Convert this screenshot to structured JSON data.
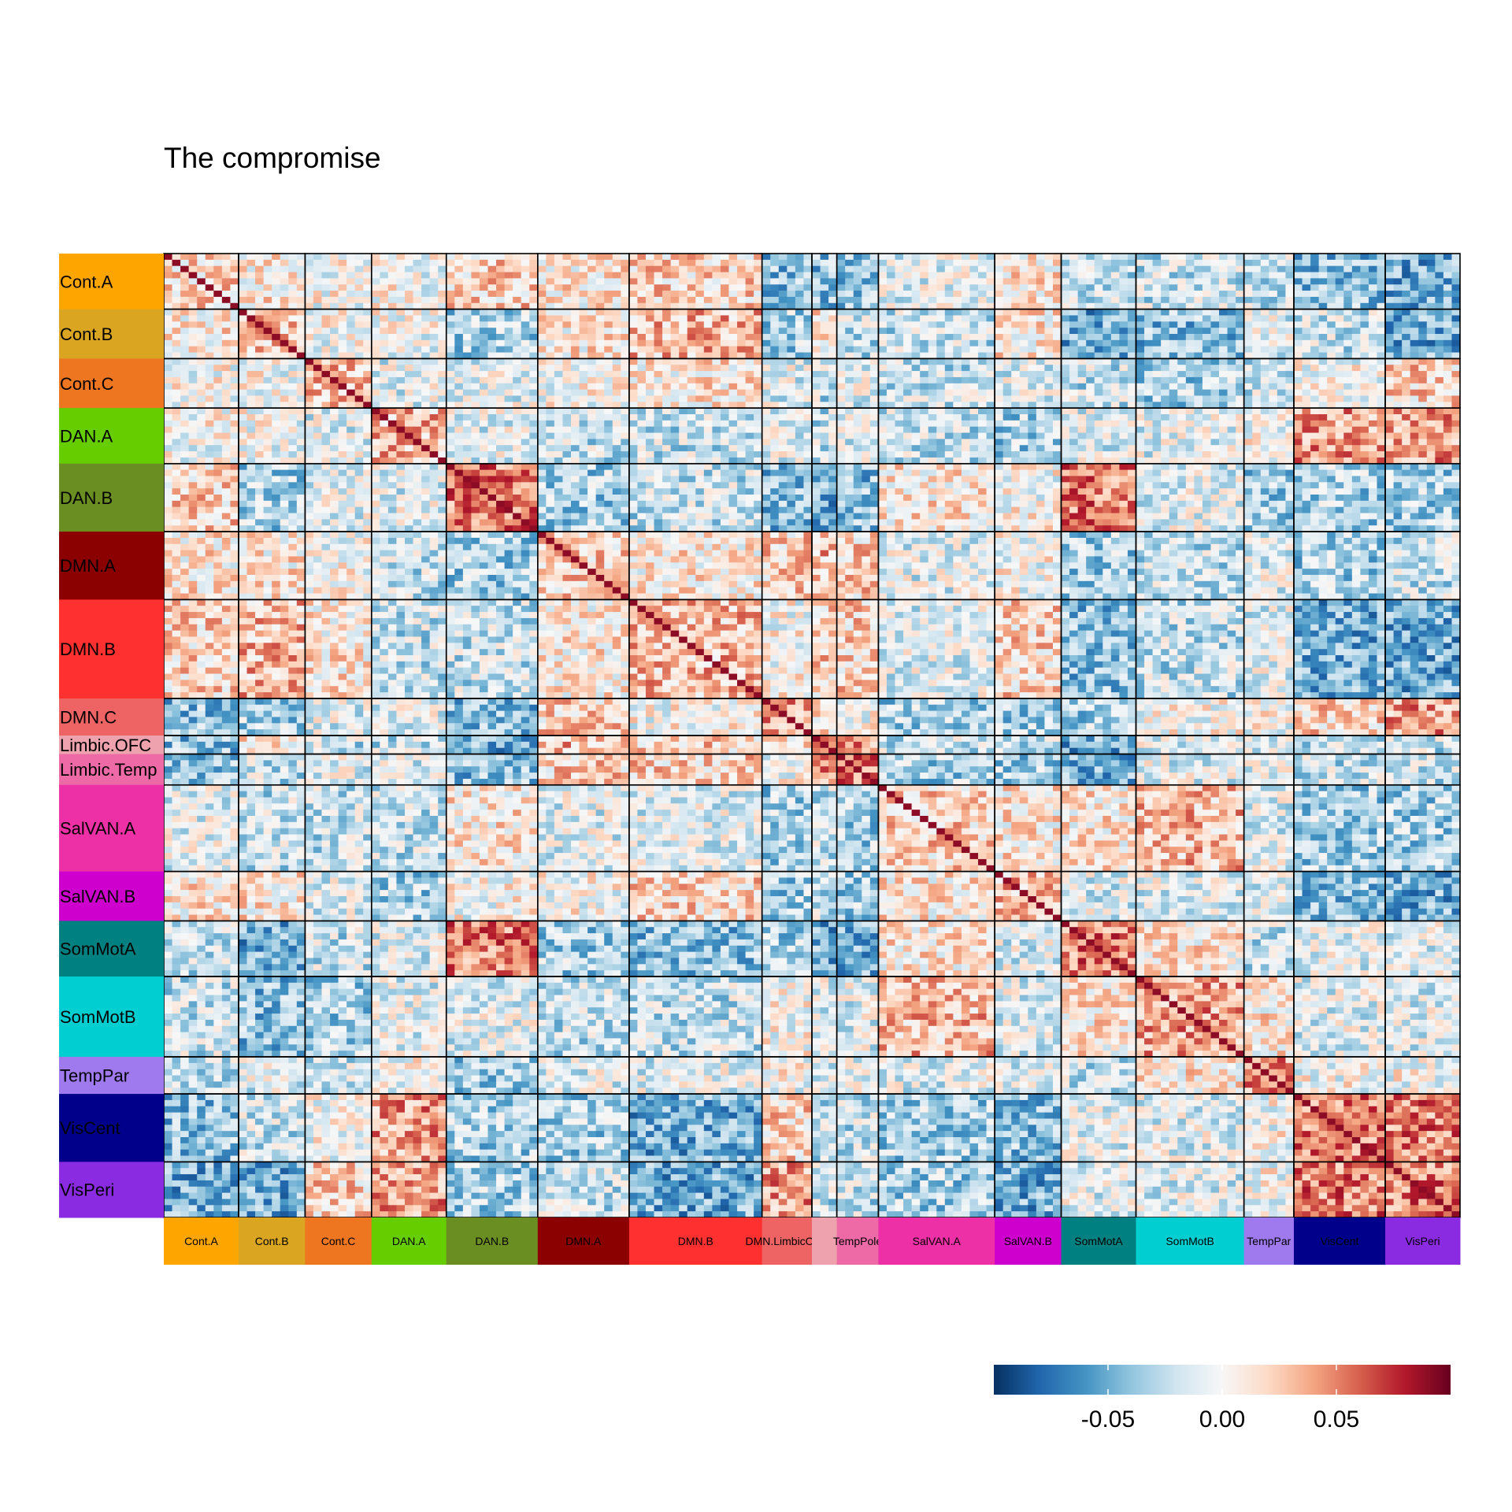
{
  "chart_data": {
    "type": "heatmap",
    "title": "The compromise",
    "matrix_kind": "symmetric correlation/compromise matrix of brain regions grouped by network",
    "groups": [
      {
        "name": "Cont.A",
        "color": "#FFA500",
        "n": 9
      },
      {
        "name": "Cont.B",
        "color": "#DAA520",
        "n": 8
      },
      {
        "name": "Cont.C",
        "color": "#EE7621",
        "n": 8
      },
      {
        "name": "DAN.A",
        "color": "#66CD00",
        "n": 9
      },
      {
        "name": "DAN.B",
        "color": "#6B8E23",
        "n": 11
      },
      {
        "name": "DMN.A",
        "color": "#8B0000",
        "n": 11
      },
      {
        "name": "DMN.B",
        "color": "#FF3030",
        "n": 16
      },
      {
        "name": "DMN.C",
        "color": "#EE6363",
        "n": 6
      },
      {
        "name": "Limbic.OFC",
        "color": "#EEA2AD",
        "n": 3
      },
      {
        "name": "Limbic.TempPole",
        "color": "#EE6AA7",
        "n": 5
      },
      {
        "name": "SalVAN.A",
        "color": "#EE30A7",
        "n": 14
      },
      {
        "name": "SalVAN.B",
        "color": "#CD00CD",
        "n": 8
      },
      {
        "name": "SomMotA",
        "color": "#008080",
        "n": 9
      },
      {
        "name": "SomMotB",
        "color": "#00CED1",
        "n": 13
      },
      {
        "name": "TempPar",
        "color": "#9F79EE",
        "n": 6
      },
      {
        "name": "VisCent",
        "color": "#00008B",
        "n": 11
      },
      {
        "name": "VisPeri",
        "color": "#8A2BE2",
        "n": 9
      }
    ],
    "row_labels": [
      "Cont.A",
      "Cont.B",
      "Cont.C",
      "DAN.A",
      "DAN.B",
      "DMN.A",
      "DMN.B",
      "DMN.C",
      "Limbic.OFC",
      "Limbic.Temp",
      "SalVAN.A",
      "SalVAN.B",
      "SomMotA",
      "SomMotB",
      "TempPar",
      "VisCent",
      "VisPeri"
    ],
    "col_labels": [
      "Cont.A",
      "Cont.B",
      "Cont.C",
      "DAN.A",
      "DAN.B",
      "DMN.A",
      "DMN.B",
      "DMN.LimbicOFC",
      "",
      "TempPole",
      "SalVAN.A",
      "SalVAN.B",
      "SomMotA",
      "SomMotB",
      "TempPar",
      "VisCent",
      "VisPeri"
    ],
    "block_means": [
      [
        0.02,
        0.01,
        0.0,
        0.0,
        0.02,
        0.01,
        0.02,
        -0.04,
        -0.04,
        -0.04,
        -0.01,
        0.01,
        -0.02,
        -0.02,
        -0.02,
        -0.04,
        -0.05
      ],
      [
        0.01,
        0.03,
        0.0,
        0.0,
        -0.03,
        0.01,
        0.03,
        -0.03,
        0.01,
        -0.02,
        -0.02,
        0.01,
        -0.05,
        -0.04,
        -0.01,
        -0.02,
        -0.05
      ],
      [
        0.0,
        0.0,
        0.03,
        -0.01,
        -0.01,
        0.0,
        0.01,
        -0.01,
        -0.02,
        -0.01,
        -0.02,
        -0.01,
        -0.02,
        -0.03,
        -0.02,
        0.0,
        0.02
      ],
      [
        0.0,
        0.0,
        -0.01,
        0.03,
        -0.01,
        -0.02,
        -0.02,
        -0.01,
        -0.02,
        -0.01,
        -0.02,
        -0.03,
        -0.01,
        -0.01,
        0.0,
        0.04,
        0.04
      ],
      [
        0.02,
        -0.03,
        -0.01,
        -0.01,
        0.05,
        -0.03,
        -0.02,
        -0.04,
        -0.05,
        -0.04,
        0.01,
        0.0,
        0.05,
        -0.01,
        -0.03,
        -0.03,
        -0.03
      ],
      [
        0.01,
        0.01,
        0.0,
        -0.02,
        -0.03,
        0.02,
        0.01,
        0.02,
        0.03,
        0.02,
        -0.01,
        0.0,
        -0.03,
        -0.02,
        -0.01,
        -0.03,
        -0.02
      ],
      [
        0.02,
        0.03,
        0.01,
        -0.02,
        -0.02,
        0.01,
        0.03,
        0.0,
        0.02,
        0.02,
        -0.01,
        0.02,
        -0.04,
        -0.02,
        -0.01,
        -0.05,
        -0.05
      ],
      [
        -0.04,
        -0.03,
        -0.01,
        -0.01,
        -0.04,
        0.02,
        0.0,
        0.04,
        0.01,
        0.0,
        -0.03,
        -0.03,
        -0.03,
        0.0,
        0.0,
        0.02,
        0.04
      ],
      [
        -0.04,
        0.01,
        -0.02,
        -0.02,
        -0.05,
        0.03,
        0.02,
        0.01,
        0.05,
        0.04,
        -0.02,
        -0.02,
        -0.05,
        -0.01,
        -0.01,
        -0.02,
        -0.02
      ],
      [
        -0.04,
        -0.02,
        -0.01,
        -0.01,
        -0.04,
        0.02,
        0.02,
        0.0,
        0.04,
        0.05,
        -0.03,
        -0.03,
        -0.05,
        -0.01,
        -0.01,
        -0.02,
        -0.02
      ],
      [
        -0.01,
        -0.02,
        -0.02,
        -0.02,
        0.01,
        -0.01,
        -0.01,
        -0.03,
        -0.02,
        -0.03,
        0.02,
        0.01,
        0.01,
        0.03,
        -0.01,
        -0.03,
        -0.03
      ],
      [
        0.01,
        0.01,
        -0.01,
        -0.03,
        0.0,
        0.0,
        0.02,
        -0.03,
        -0.02,
        -0.03,
        0.01,
        0.03,
        -0.01,
        -0.01,
        -0.01,
        -0.04,
        -0.05
      ],
      [
        -0.02,
        -0.05,
        -0.02,
        -0.01,
        0.05,
        -0.03,
        -0.04,
        -0.03,
        -0.05,
        -0.05,
        0.01,
        -0.01,
        0.05,
        0.01,
        -0.02,
        -0.01,
        -0.01
      ],
      [
        -0.02,
        -0.04,
        -0.03,
        -0.01,
        -0.01,
        -0.02,
        -0.02,
        0.0,
        -0.01,
        -0.01,
        0.03,
        -0.01,
        0.01,
        0.04,
        0.01,
        -0.01,
        -0.01
      ],
      [
        -0.02,
        -0.01,
        -0.02,
        0.0,
        -0.03,
        -0.01,
        -0.01,
        0.0,
        -0.01,
        -0.01,
        -0.01,
        -0.01,
        -0.02,
        0.01,
        0.04,
        0.0,
        0.0
      ],
      [
        -0.04,
        -0.02,
        0.0,
        0.04,
        -0.03,
        -0.03,
        -0.05,
        0.02,
        -0.02,
        -0.02,
        -0.03,
        -0.04,
        -0.01,
        -0.01,
        0.0,
        0.05,
        0.05
      ],
      [
        -0.05,
        -0.05,
        0.02,
        0.04,
        -0.03,
        -0.02,
        -0.05,
        0.04,
        -0.02,
        -0.02,
        -0.03,
        -0.05,
        -0.01,
        -0.01,
        0.0,
        0.05,
        0.05
      ]
    ],
    "diagonal_value": 0.09,
    "colorbar": {
      "ticks": [
        -0.05,
        0.0,
        0.05
      ],
      "tick_labels": [
        "-0.05",
        "0.00",
        "0.05"
      ],
      "range": [
        -0.1,
        0.1
      ],
      "palette": [
        "#053061",
        "#2166AC",
        "#4393C3",
        "#92C5DE",
        "#D1E5F0",
        "#F7F7F7",
        "#FDDBC7",
        "#F4A582",
        "#D6604D",
        "#B2182B",
        "#67001F"
      ]
    },
    "legend_position": "bottom-right",
    "grid": false
  }
}
